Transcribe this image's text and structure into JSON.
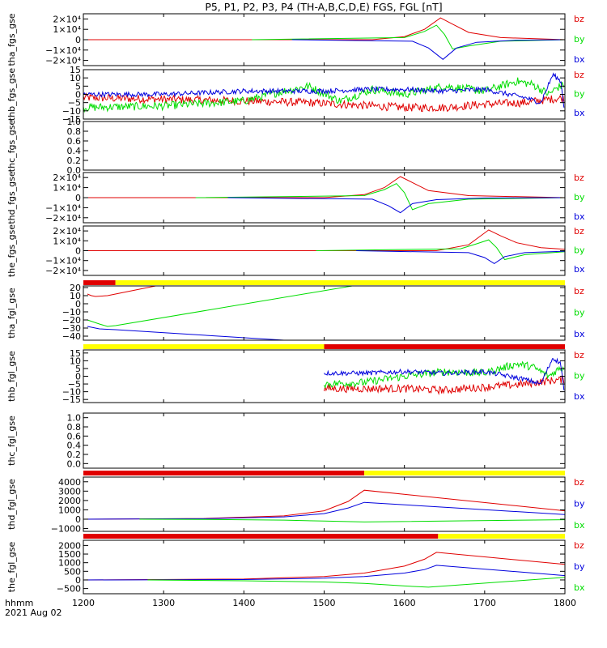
{
  "title": "P5, P1, P2, P3, P4 (TH-A,B,C,D,E) FGS, FGL [nT]",
  "x_axis": {
    "ticks": [
      1200,
      1300,
      1400,
      1500,
      1600,
      1700,
      1800
    ],
    "label_line1": "hhmm",
    "label_line2": "2021 Aug 02"
  },
  "chart_data": [
    {
      "type": "line",
      "ylabel": "tha_fgs_gse",
      "ylim": [
        -25000,
        25000
      ],
      "yticks": [
        20000,
        10000,
        0,
        -10000,
        -20000
      ],
      "yticklabels": [
        "2×10⁴",
        "1×10⁴",
        "0",
        "−1×10⁴",
        "−2×10⁴"
      ],
      "legend": [
        "bz",
        "by",
        "bx"
      ],
      "series": [
        {
          "name": "bz",
          "color": "#e00000",
          "x": [
            1200,
            1560,
            1600,
            1625,
            1645,
            1660,
            1680,
            1720,
            1800
          ],
          "y": [
            0,
            0,
            3000,
            10000,
            21000,
            15000,
            7000,
            2000,
            0
          ]
        },
        {
          "name": "by",
          "color": "#00dd00",
          "x": [
            1410,
            1600,
            1625,
            1640,
            1650,
            1660,
            1680,
            1720,
            1800
          ],
          "y": [
            0,
            2000,
            8000,
            14000,
            5000,
            -9000,
            -6000,
            -1500,
            0
          ]
        },
        {
          "name": "bx",
          "color": "#0000dd",
          "x": [
            1460,
            1610,
            1630,
            1648,
            1665,
            1690,
            1740,
            1800
          ],
          "y": [
            0,
            -1500,
            -8000,
            -19000,
            -8000,
            -2500,
            -500,
            0
          ]
        }
      ]
    },
    {
      "type": "line",
      "ylabel": "thb_fgs_gse",
      "ylim": [
        -15,
        15
      ],
      "yticks": [
        15,
        10,
        5,
        0,
        -5,
        -10,
        -15
      ],
      "yticklabels": [
        "15",
        "10",
        "5",
        "0",
        "−5",
        "−10",
        "−15"
      ],
      "legend": [
        "bz",
        "by",
        "bx"
      ],
      "series": [
        {
          "name": "bz",
          "color": "#e00000",
          "x": [
            1200,
            1300,
            1400,
            1480,
            1520,
            1560,
            1600,
            1650,
            1700,
            1750,
            1780,
            1800
          ],
          "y": [
            -2,
            -3,
            -4,
            -5,
            -6,
            -7,
            -8,
            -8,
            -6,
            -5,
            -3,
            -2
          ],
          "noise": 2.5
        },
        {
          "name": "by",
          "color": "#00dd00",
          "x": [
            1200,
            1300,
            1400,
            1450,
            1480,
            1520,
            1560,
            1600,
            1650,
            1700,
            1740,
            1760,
            1780,
            1790,
            1800
          ],
          "y": [
            -8,
            -7,
            -4,
            2,
            5,
            -4,
            3,
            0,
            5,
            2,
            8,
            6,
            0,
            4,
            6
          ],
          "noise": 2.5
        },
        {
          "name": "bx",
          "color": "#0000dd",
          "x": [
            1200,
            1300,
            1400,
            1500,
            1550,
            1600,
            1650,
            1700,
            1750,
            1770,
            1785,
            1795,
            1800
          ],
          "y": [
            0,
            0,
            2,
            2,
            3,
            3,
            2,
            3,
            -2,
            -5,
            12,
            8,
            -12
          ],
          "noise": 1.5
        }
      ]
    },
    {
      "type": "line",
      "ylabel": "thc_fgs_gse",
      "ylim": [
        0,
        1
      ],
      "yticks": [
        1.0,
        0.8,
        0.6,
        0.4,
        0.2,
        0.0
      ],
      "yticklabels": [
        "1.0",
        "0.8",
        "0.6",
        "0.4",
        "0.2",
        "0.0"
      ],
      "legend": [],
      "series": []
    },
    {
      "type": "line",
      "ylabel": "thd_fgs_gse",
      "ylim": [
        -25000,
        25000
      ],
      "yticks": [
        20000,
        10000,
        0,
        -10000,
        -20000
      ],
      "yticklabels": [
        "2×10⁴",
        "1×10⁴",
        "0",
        "−1×10⁴",
        "−2×10⁴"
      ],
      "legend": [
        "bz",
        "by",
        "bx"
      ],
      "series": [
        {
          "name": "bz",
          "color": "#e00000",
          "x": [
            1200,
            1500,
            1550,
            1575,
            1595,
            1610,
            1630,
            1680,
            1800
          ],
          "y": [
            0,
            0,
            3000,
            10000,
            21000,
            15000,
            7000,
            2000,
            0
          ]
        },
        {
          "name": "by",
          "color": "#00dd00",
          "x": [
            1340,
            1550,
            1575,
            1590,
            1600,
            1610,
            1630,
            1680,
            1800
          ],
          "y": [
            0,
            2000,
            8000,
            14000,
            5000,
            -12000,
            -6000,
            -1500,
            0
          ]
        },
        {
          "name": "bx",
          "color": "#0000dd",
          "x": [
            1380,
            1560,
            1580,
            1595,
            1610,
            1640,
            1700,
            1800
          ],
          "y": [
            0,
            -1500,
            -8000,
            -15000,
            -6000,
            -2000,
            -300,
            0
          ]
        }
      ]
    },
    {
      "type": "line",
      "ylabel": "the_fgs_gse",
      "ylim": [
        -25000,
        25000
      ],
      "yticks": [
        20000,
        10000,
        0,
        -10000,
        -20000
      ],
      "yticklabels": [
        "2×10⁴",
        "1×10⁴",
        "0",
        "−1×10⁴",
        "−2×10⁴"
      ],
      "legend": [
        "bz",
        "by",
        "bx"
      ],
      "series": [
        {
          "name": "bz",
          "color": "#e00000",
          "x": [
            1200,
            1640,
            1680,
            1705,
            1720,
            1740,
            1770,
            1800
          ],
          "y": [
            0,
            0,
            6000,
            21000,
            15000,
            8000,
            3000,
            1500
          ]
        },
        {
          "name": "by",
          "color": "#00dd00",
          "x": [
            1490,
            1670,
            1690,
            1705,
            1715,
            1725,
            1750,
            1800
          ],
          "y": [
            0,
            2000,
            7000,
            11000,
            3000,
            -9000,
            -4000,
            -1000
          ]
        },
        {
          "name": "bx",
          "color": "#0000dd",
          "x": [
            1540,
            1680,
            1700,
            1712,
            1725,
            1750,
            1800
          ],
          "y": [
            0,
            -2000,
            -7000,
            -13000,
            -6000,
            -2000,
            -500
          ]
        }
      ]
    },
    {
      "type": "line",
      "ylabel": "tha_fgl_gse",
      "ylim": [
        -45,
        22
      ],
      "yticks": [
        20,
        10,
        0,
        -10,
        -20,
        -30,
        -40
      ],
      "yticklabels": [
        "20",
        "10",
        "0",
        "−10",
        "−20",
        "−30",
        "−40"
      ],
      "legend": [
        "bz",
        "by",
        "bx"
      ],
      "series": [
        {
          "name": "bz",
          "color": "#e00000",
          "x": [
            1205,
            1210,
            1215,
            1230,
            1240,
            1290
          ],
          "y": [
            12,
            10,
            9,
            10,
            12,
            22
          ]
        },
        {
          "name": "by",
          "color": "#00dd00",
          "x": [
            1205,
            1220,
            1230,
            1240,
            1535
          ],
          "y": [
            -20,
            -25,
            -28,
            -27,
            22
          ]
        },
        {
          "name": "bx",
          "color": "#0000dd",
          "x": [
            1205,
            1220,
            1240,
            1450
          ],
          "y": [
            -28,
            -31,
            -32,
            -45
          ]
        }
      ]
    },
    {
      "type": "line",
      "ylabel": "thb_fgl_gse",
      "ylim": [
        -17,
        17
      ],
      "yticks": [
        15,
        10,
        5,
        0,
        -5,
        -10,
        -15
      ],
      "yticklabels": [
        "15",
        "10",
        "5",
        "0",
        "−5",
        "−10",
        "−15"
      ],
      "legend": [
        "bz",
        "by",
        "bx"
      ],
      "series": [
        {
          "name": "bz",
          "color": "#e00000",
          "x": [
            1500,
            1550,
            1600,
            1650,
            1700,
            1750,
            1780,
            1800
          ],
          "y": [
            -8,
            -8,
            -8,
            -9,
            -7,
            -5,
            -3,
            -2
          ],
          "noise": 2.5
        },
        {
          "name": "by",
          "color": "#00dd00",
          "x": [
            1500,
            1550,
            1600,
            1650,
            1700,
            1740,
            1760,
            1780,
            1790,
            1800
          ],
          "y": [
            -5,
            -4,
            0,
            3,
            2,
            8,
            6,
            0,
            4,
            6
          ],
          "noise": 2.5
        },
        {
          "name": "bx",
          "color": "#0000dd",
          "x": [
            1500,
            1550,
            1600,
            1650,
            1700,
            1750,
            1770,
            1785,
            1795,
            1800
          ],
          "y": [
            2,
            2,
            3,
            2,
            3,
            -2,
            -5,
            12,
            8,
            -14
          ],
          "noise": 1.5
        }
      ]
    },
    {
      "type": "line",
      "ylabel": "thc_fgl_gse",
      "ylim": [
        -0.1,
        1.1
      ],
      "yticks": [
        1.0,
        0.8,
        0.6,
        0.4,
        0.2,
        0.0
      ],
      "yticklabels": [
        "1.0",
        "0.8",
        "0.6",
        "0.4",
        "0.2",
        "0.0"
      ],
      "legend": [],
      "series": []
    },
    {
      "type": "line",
      "ylabel": "thd_fgl_gse",
      "ylim": [
        -1300,
        4500
      ],
      "yticks": [
        4000,
        3000,
        2000,
        1000,
        0,
        -1000
      ],
      "yticklabels": [
        "4000",
        "3000",
        "2000",
        "1000",
        "0",
        "−1000"
      ],
      "legend": [
        "bz",
        "by",
        "bx"
      ],
      "series": [
        {
          "name": "bz",
          "color": "#e00000",
          "x": [
            1200,
            1350,
            1450,
            1500,
            1530,
            1550,
            1800
          ],
          "y": [
            0,
            80,
            350,
            900,
            1900,
            3100,
            900
          ]
        },
        {
          "name": "by",
          "color": "#0000dd",
          "x": [
            1200,
            1350,
            1450,
            1500,
            1530,
            1550,
            1800
          ],
          "y": [
            0,
            50,
            250,
            600,
            1200,
            1800,
            500
          ]
        },
        {
          "name": "bx",
          "color": "#00dd00",
          "x": [
            1270,
            1350,
            1450,
            1500,
            1550,
            1800
          ],
          "y": [
            0,
            -20,
            -100,
            -200,
            -300,
            -50
          ]
        }
      ]
    },
    {
      "type": "line",
      "ylabel": "the_fgl_gse",
      "ylim": [
        -800,
        2300
      ],
      "yticks": [
        2000,
        1500,
        1000,
        500,
        0,
        -500
      ],
      "yticklabels": [
        "2000",
        "1500",
        "1000",
        "500",
        "0",
        "−500"
      ],
      "legend": [
        "bz",
        "by",
        "bx"
      ],
      "series": [
        {
          "name": "bz",
          "color": "#e00000",
          "x": [
            1200,
            1400,
            1500,
            1550,
            1600,
            1625,
            1640,
            1800
          ],
          "y": [
            0,
            50,
            200,
            400,
            800,
            1200,
            1600,
            900
          ]
        },
        {
          "name": "by",
          "color": "#0000dd",
          "x": [
            1200,
            1400,
            1500,
            1550,
            1600,
            1625,
            1640,
            1800
          ],
          "y": [
            0,
            20,
            100,
            200,
            400,
            600,
            850,
            250
          ]
        },
        {
          "name": "bx",
          "color": "#00dd00",
          "x": [
            1280,
            1400,
            1500,
            1550,
            1600,
            1630,
            1800
          ],
          "y": [
            0,
            -50,
            -120,
            -200,
            -350,
            -420,
            150
          ]
        }
      ]
    }
  ],
  "colors": {
    "red": "#e00000",
    "green": "#00dd00",
    "blue": "#0000dd",
    "yellow": "#ffff00",
    "black": "#000000"
  },
  "mode_bars": [
    {
      "segments": [
        {
          "from": 1200,
          "to": 1240,
          "color": "#e00000"
        },
        {
          "from": 1240,
          "to": 1800,
          "color": "#ffff00"
        }
      ]
    },
    {
      "segments": [
        {
          "from": 1200,
          "to": 1500,
          "color": "#ffff00"
        },
        {
          "from": 1500,
          "to": 1800,
          "color": "#e00000"
        }
      ]
    },
    {
      "segments": [
        {
          "from": 1200,
          "to": 1550,
          "color": "#e00000"
        },
        {
          "from": 1550,
          "to": 1800,
          "color": "#ffff00"
        }
      ]
    },
    {
      "segments": [
        {
          "from": 1200,
          "to": 1642,
          "color": "#e00000"
        },
        {
          "from": 1642,
          "to": 1800,
          "color": "#ffff00"
        }
      ]
    }
  ]
}
